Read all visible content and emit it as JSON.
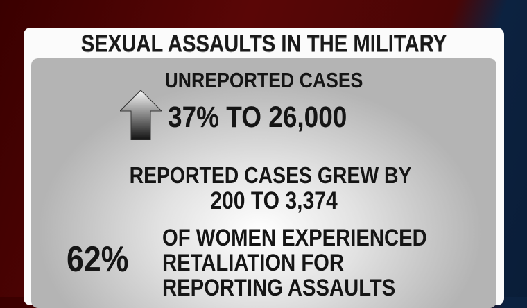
{
  "title": "SEXUAL ASSAULTS IN THE MILITARY",
  "unreported": {
    "heading": "UNREPORTED CASES",
    "icon": "up-arrow-icon",
    "value": "37% TO 26,000"
  },
  "reported": {
    "line1": "REPORTED CASES GREW BY",
    "line2": "200 TO 3,374"
  },
  "retaliation": {
    "percent": "62%",
    "lines": [
      "OF WOMEN EXPERIENCED",
      "RETALIATION FOR",
      "REPORTING ASSAULTS"
    ]
  }
}
